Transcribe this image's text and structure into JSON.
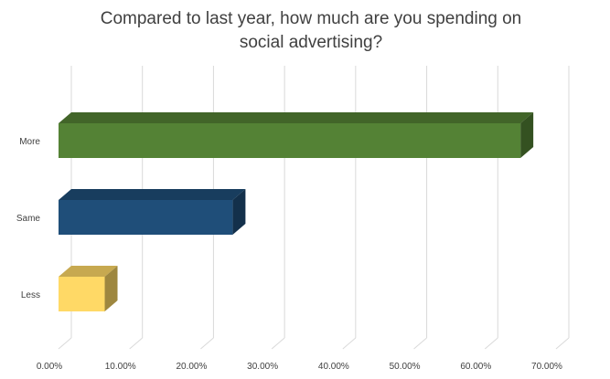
{
  "chart_data": {
    "type": "bar",
    "orientation": "horizontal",
    "three_d": true,
    "title": "Compared to last year, how much are you spending on social advertising?",
    "categories": [
      "More",
      "Same",
      "Less"
    ],
    "values": [
      0.65,
      0.245,
      0.065
    ],
    "colors": [
      "#548235",
      "#1F4E79",
      "#FFD966"
    ],
    "xlim": [
      0,
      0.7
    ],
    "xticks": [
      0,
      0.1,
      0.2,
      0.3,
      0.4,
      0.5,
      0.6,
      0.7
    ],
    "xtick_labels": [
      "0.00%",
      "10.00%",
      "20.00%",
      "30.00%",
      "40.00%",
      "50.00%",
      "60.00%",
      "70.00%"
    ],
    "grid": true,
    "legend": "none"
  }
}
